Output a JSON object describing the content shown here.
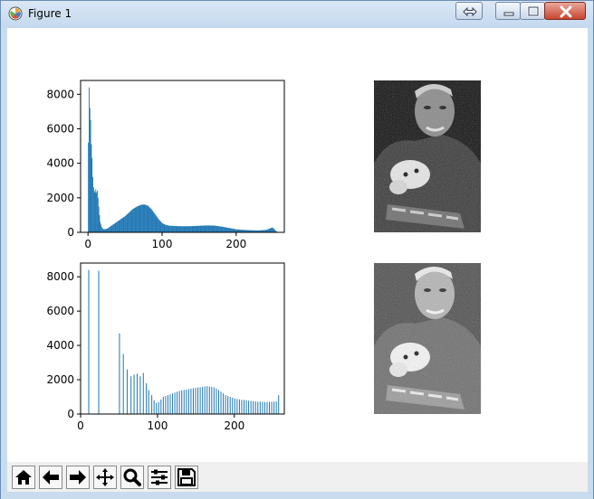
{
  "window": {
    "title": "Figure 1",
    "accent_color": "#1f77b4",
    "titlebar_icons": [
      "matplotlib-icon",
      "restore-swap-icon",
      "minimize-icon",
      "maximize-icon",
      "close-icon"
    ]
  },
  "toolbar": {
    "items": [
      {
        "name": "home-icon"
      },
      {
        "name": "back-arrow-icon"
      },
      {
        "name": "forward-arrow-icon"
      },
      {
        "name": "pan-icon"
      },
      {
        "name": "zoom-icon"
      },
      {
        "name": "subplots-config-icon"
      },
      {
        "name": "save-icon"
      }
    ]
  },
  "chart_data": [
    {
      "type": "bar",
      "description": "Histogram of original image intensities",
      "xlim": [
        -10,
        265
      ],
      "ylim": [
        0,
        8800
      ],
      "xticks": [
        0,
        100,
        200
      ],
      "yticks": [
        0,
        2000,
        4000,
        6000,
        8000
      ],
      "grid": false,
      "profile": [
        [
          0,
          5200
        ],
        [
          1,
          8400
        ],
        [
          2,
          7200
        ],
        [
          3,
          6500
        ],
        [
          4,
          5100
        ],
        [
          5,
          4300
        ],
        [
          6,
          3200
        ],
        [
          7,
          2600
        ],
        [
          8,
          2400
        ],
        [
          9,
          2300
        ],
        [
          10,
          2500
        ],
        [
          11,
          2300
        ],
        [
          12,
          2400
        ],
        [
          13,
          2000
        ],
        [
          14,
          1500
        ],
        [
          15,
          1000
        ],
        [
          16,
          600
        ],
        [
          18,
          300
        ],
        [
          20,
          180
        ],
        [
          25,
          200
        ],
        [
          30,
          350
        ],
        [
          35,
          500
        ],
        [
          40,
          650
        ],
        [
          45,
          800
        ],
        [
          50,
          950
        ],
        [
          55,
          1150
        ],
        [
          60,
          1350
        ],
        [
          65,
          1480
        ],
        [
          70,
          1580
        ],
        [
          75,
          1620
        ],
        [
          80,
          1550
        ],
        [
          85,
          1350
        ],
        [
          90,
          1050
        ],
        [
          95,
          750
        ],
        [
          100,
          520
        ],
        [
          105,
          420
        ],
        [
          110,
          380
        ],
        [
          120,
          360
        ],
        [
          130,
          350
        ],
        [
          140,
          360
        ],
        [
          150,
          380
        ],
        [
          160,
          400
        ],
        [
          170,
          390
        ],
        [
          180,
          330
        ],
        [
          190,
          250
        ],
        [
          200,
          170
        ],
        [
          210,
          140
        ],
        [
          220,
          120
        ],
        [
          230,
          110
        ],
        [
          240,
          140
        ],
        [
          245,
          220
        ],
        [
          248,
          280
        ],
        [
          250,
          230
        ],
        [
          253,
          80
        ],
        [
          255,
          40
        ]
      ]
    },
    {
      "type": "bar",
      "description": "Histogram after histogram equalization (sparse bins)",
      "xlim": [
        0,
        265
      ],
      "ylim": [
        0,
        8800
      ],
      "xticks": [
        0,
        100,
        200
      ],
      "yticks": [
        0,
        2000,
        4000,
        6000,
        8000
      ],
      "grid": false,
      "spikes": [
        [
          10,
          8400
        ],
        [
          23,
          8350
        ],
        [
          50,
          4700
        ],
        [
          55,
          3500
        ],
        [
          60,
          2600
        ],
        [
          65,
          2200
        ],
        [
          69,
          2300
        ],
        [
          73,
          2350
        ],
        [
          77,
          2200
        ],
        [
          81,
          2400
        ],
        [
          85,
          1800
        ],
        [
          88,
          1400
        ],
        [
          92,
          1100
        ],
        [
          95,
          800
        ],
        [
          98,
          650
        ],
        [
          101,
          700
        ],
        [
          104,
          850
        ],
        [
          107,
          1000
        ],
        [
          110,
          1050
        ],
        [
          113,
          1100
        ],
        [
          116,
          1150
        ],
        [
          119,
          1200
        ],
        [
          122,
          1250
        ],
        [
          125,
          1300
        ],
        [
          128,
          1350
        ],
        [
          131,
          1380
        ],
        [
          134,
          1400
        ],
        [
          137,
          1420
        ],
        [
          140,
          1450
        ],
        [
          143,
          1480
        ],
        [
          146,
          1500
        ],
        [
          149,
          1520
        ],
        [
          152,
          1550
        ],
        [
          155,
          1560
        ],
        [
          158,
          1580
        ],
        [
          161,
          1600
        ],
        [
          164,
          1620
        ],
        [
          167,
          1600
        ],
        [
          170,
          1580
        ],
        [
          173,
          1550
        ],
        [
          176,
          1480
        ],
        [
          179,
          1400
        ],
        [
          182,
          1300
        ],
        [
          185,
          1200
        ],
        [
          188,
          1100
        ],
        [
          191,
          1050
        ],
        [
          194,
          1000
        ],
        [
          197,
          950
        ],
        [
          200,
          900
        ],
        [
          203,
          880
        ],
        [
          206,
          850
        ],
        [
          209,
          830
        ],
        [
          212,
          820
        ],
        [
          215,
          800
        ],
        [
          218,
          780
        ],
        [
          221,
          760
        ],
        [
          224,
          740
        ],
        [
          227,
          730
        ],
        [
          230,
          720
        ],
        [
          233,
          720
        ],
        [
          236,
          710
        ],
        [
          239,
          700
        ],
        [
          242,
          700
        ],
        [
          245,
          700
        ],
        [
          248,
          710
        ],
        [
          251,
          720
        ],
        [
          254,
          730
        ],
        [
          257,
          1100
        ]
      ]
    }
  ],
  "images": [
    {
      "name": "original-image",
      "kind": "grayscale-photo"
    },
    {
      "name": "equalized-image",
      "kind": "grayscale-photo"
    }
  ]
}
